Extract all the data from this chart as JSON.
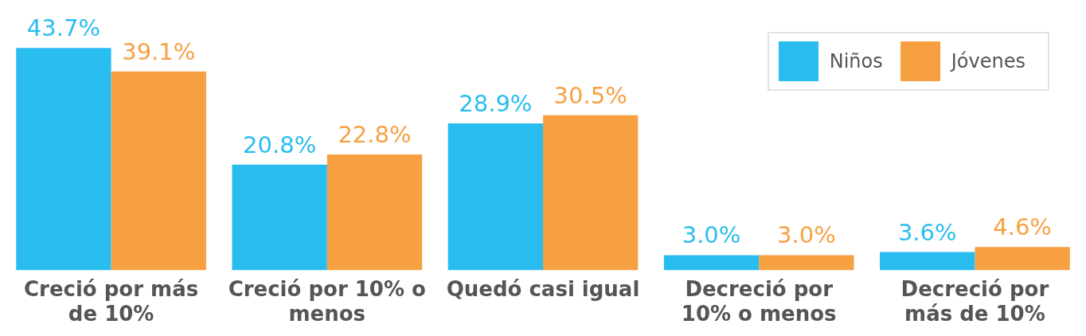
{
  "chart_data": {
    "type": "bar",
    "categories": [
      "Creció por más de 10%",
      "Creció por 10% o menos",
      "Quedó casi igual",
      "Decreció por 10% o menos",
      "Decreció por más de 10%"
    ],
    "series": [
      {
        "name": "Niños",
        "color": "#29bdef",
        "values": [
          43.7,
          20.8,
          28.9,
          3.0,
          3.6
        ],
        "value_labels": [
          "43.7%",
          "20.8%",
          "28.9%",
          "3.0%",
          "3.6%"
        ]
      },
      {
        "name": "Jóvenes",
        "color": "#f7a042",
        "values": [
          39.1,
          22.8,
          30.5,
          3.0,
          4.6
        ],
        "value_labels": [
          "39.1%",
          "22.8%",
          "30.5%",
          "3.0%",
          "4.6%"
        ]
      }
    ],
    "legend": "top right",
    "grid": false
  }
}
